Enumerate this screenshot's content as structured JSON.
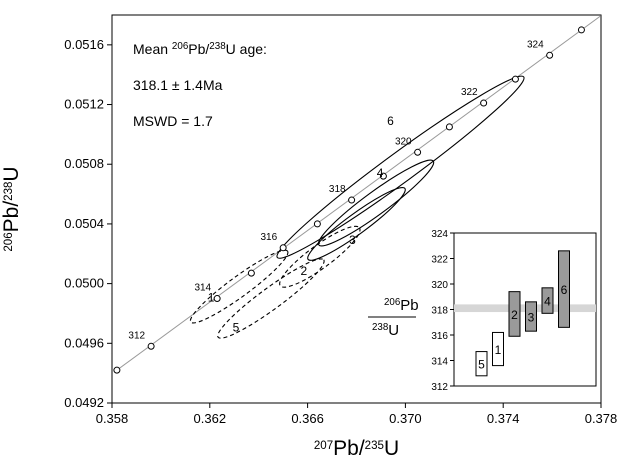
{
  "chart_data": {
    "type": "scatter",
    "title": "",
    "main": {
      "x_min": 0.358,
      "x_max": 0.378,
      "y_min": 0.0492,
      "y_max": 0.0518,
      "x_ticks": [
        "0.358",
        "0.362",
        "0.366",
        "0.370",
        "0.374",
        "0.378"
      ],
      "y_ticks": [
        "0.0492",
        "0.0496",
        "0.0500",
        "0.0504",
        "0.0508",
        "0.0512",
        "0.0516"
      ],
      "x_label": {
        "pre": "207",
        "main": "Pb/",
        "sup2": "235",
        "tail": "U"
      },
      "y_label": {
        "pre": "206",
        "main": "Pb/",
        "sup2": "238",
        "tail": "U"
      },
      "concordia_points": [
        {
          "x": 0.3582,
          "y": 0.04942,
          "label": ""
        },
        {
          "x": 0.3596,
          "y": 0.04958,
          "label": "312"
        },
        {
          "x": 0.3623,
          "y": 0.0499,
          "label": "314"
        },
        {
          "x": 0.3637,
          "y": 0.05007,
          "label": ""
        },
        {
          "x": 0.365,
          "y": 0.05024,
          "label": "316"
        },
        {
          "x": 0.3664,
          "y": 0.0504,
          "label": ""
        },
        {
          "x": 0.3678,
          "y": 0.05056,
          "label": "318"
        },
        {
          "x": 0.3691,
          "y": 0.05072,
          "label": ""
        },
        {
          "x": 0.3705,
          "y": 0.05088,
          "label": "320"
        },
        {
          "x": 0.3718,
          "y": 0.05105,
          "label": ""
        },
        {
          "x": 0.3732,
          "y": 0.05121,
          "label": "322"
        },
        {
          "x": 0.3745,
          "y": 0.05137,
          "label": ""
        },
        {
          "x": 0.3759,
          "y": 0.05153,
          "label": "324"
        },
        {
          "x": 0.3772,
          "y": 0.0517,
          "label": ""
        }
      ],
      "ellipses": [
        {
          "label": "1",
          "cx": 0.3632,
          "cy": 0.04998,
          "rx": 0.0022,
          "ry": 0.00015,
          "dashed": true
        },
        {
          "label": "2",
          "cx": 0.3665,
          "cy": 0.05018,
          "rx": 0.0018,
          "ry": 0.00017,
          "dashed": true
        },
        {
          "label": "3",
          "cx": 0.368,
          "cy": 0.0504,
          "rx": 0.0022,
          "ry": 0.00015,
          "dashed": false
        },
        {
          "label": "4",
          "cx": 0.3688,
          "cy": 0.05054,
          "rx": 0.0026,
          "ry": 0.00017,
          "dashed": false
        },
        {
          "label": "5",
          "cx": 0.3645,
          "cy": 0.0499,
          "rx": 0.0024,
          "ry": 0.00016,
          "dashed": true
        },
        {
          "label": "6",
          "cx": 0.3698,
          "cy": 0.05078,
          "rx": 0.0056,
          "ry": 0.00022,
          "dashed": false
        }
      ],
      "annotation_lines": [
        "Mean 206Pb/238U age:",
        "318.1 ± 1.4Ma",
        "MSWD = 1.7"
      ]
    },
    "inset": {
      "type": "bar",
      "y_min": 312,
      "y_max": 324,
      "y_ticks": [
        "312",
        "314",
        "316",
        "318",
        "320",
        "322",
        "324"
      ],
      "mean": 318.1,
      "mean_band": [
        317.8,
        318.4
      ],
      "y_label_num": "206Pb",
      "y_label_den": "238U",
      "bars": [
        {
          "label": "5",
          "low": 312.8,
          "high": 314.7,
          "filled": false
        },
        {
          "label": "1",
          "low": 313.6,
          "high": 316.2,
          "filled": false
        },
        {
          "label": "2",
          "low": 315.9,
          "high": 319.4,
          "filled": true
        },
        {
          "label": "3",
          "low": 316.3,
          "high": 318.6,
          "filled": true
        },
        {
          "label": "4",
          "low": 317.7,
          "high": 319.7,
          "filled": true
        },
        {
          "label": "6",
          "low": 316.6,
          "high": 322.6,
          "filled": true
        }
      ]
    },
    "colors": {
      "line": "#000000",
      "fill_bar": "#9a9a9a",
      "mean_band": "#d6d6d6",
      "concordia": "#9a9a9a"
    }
  }
}
